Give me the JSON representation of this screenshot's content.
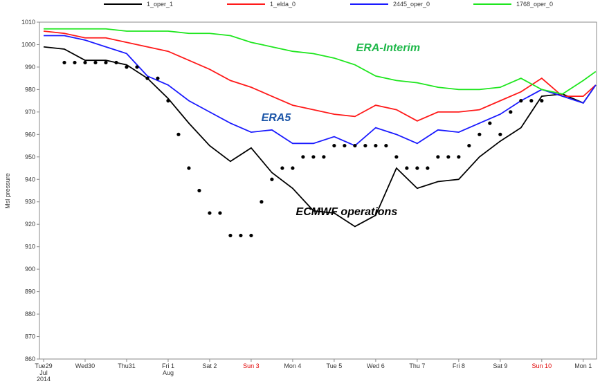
{
  "chart_data": {
    "type": "line",
    "y_label": "Msl pressure",
    "xlim": [
      -0.1,
      13.32
    ],
    "ylim": [
      860,
      1010
    ],
    "yticks": [
      860,
      870,
      880,
      890,
      900,
      910,
      920,
      930,
      940,
      950,
      960,
      970,
      980,
      990,
      1000,
      1010
    ],
    "xticks": [
      {
        "value": 0,
        "label": "Tue29"
      },
      {
        "value": 1,
        "label": "Wed30"
      },
      {
        "value": 2,
        "label": "Thu31"
      },
      {
        "value": 3,
        "label": "Fri 1"
      },
      {
        "value": 4,
        "label": "Sat 2"
      },
      {
        "value": 5,
        "label": "Sun 3",
        "color": "#e00000"
      },
      {
        "value": 6,
        "label": "Mon 4"
      },
      {
        "value": 7,
        "label": "Tue 5"
      },
      {
        "value": 8,
        "label": "Wed 6"
      },
      {
        "value": 9,
        "label": "Thu 7"
      },
      {
        "value": 10,
        "label": "Fri 8"
      },
      {
        "value": 11,
        "label": "Sat 9"
      },
      {
        "value": 12,
        "label": "Sun 10",
        "color": "#e00000"
      },
      {
        "value": 13,
        "label": "Mon 1"
      }
    ],
    "xtick_sublabels": [
      {
        "tick": 0,
        "lines": [
          "Jul",
          "2014"
        ]
      },
      {
        "tick": 3,
        "lines": [
          "Aug"
        ]
      }
    ],
    "x": [
      0,
      0.5,
      1,
      1.5,
      2,
      2.5,
      3,
      3.5,
      4,
      4.5,
      5,
      5.5,
      6,
      6.5,
      7,
      7.5,
      8,
      8.5,
      9,
      9.5,
      10,
      10.5,
      11,
      11.5,
      12,
      12.5,
      13,
      13.3
    ],
    "series": [
      {
        "name": "1_oper_1",
        "color": "#000000",
        "values": [
          999,
          998,
          993,
          993,
          991,
          985,
          976,
          965,
          955,
          948,
          954,
          943,
          936,
          926,
          925,
          919,
          924,
          945,
          936,
          939,
          940,
          950,
          957,
          963,
          977,
          978,
          974,
          982
        ]
      },
      {
        "name": "1_elda_0",
        "color": "#ff1a1a",
        "values": [
          1006,
          1005,
          1003,
          1003,
          1001,
          999,
          997,
          993,
          989,
          984,
          981,
          977,
          973,
          971,
          969,
          968,
          973,
          971,
          966,
          970,
          970,
          971,
          975,
          979,
          985,
          977,
          977,
          982
        ]
      },
      {
        "name": "2445_oper_0",
        "color": "#1a1aff",
        "values": [
          1004,
          1004,
          1002,
          999,
          996,
          986,
          982,
          975,
          970,
          965,
          961,
          962,
          956,
          956,
          959,
          955,
          963,
          960,
          956,
          962,
          961,
          965,
          969,
          975,
          980,
          977,
          974,
          982
        ]
      },
      {
        "name": "1768_oper_0",
        "color": "#1ee61e",
        "values": [
          1007,
          1007,
          1007,
          1007,
          1006,
          1006,
          1006,
          1005,
          1005,
          1004,
          1001,
          999,
          997,
          996,
          994,
          991,
          986,
          984,
          983,
          981,
          980,
          980,
          981,
          985,
          980,
          978,
          984,
          988
        ]
      }
    ],
    "dots": {
      "color": "#000000",
      "x": [
        0.5,
        0.75,
        1,
        1.25,
        1.5,
        1.75,
        2,
        2.25,
        2.5,
        2.75,
        3,
        3.25,
        3.5,
        3.75,
        4,
        4.25,
        4.5,
        4.75,
        5,
        5.25,
        5.5,
        5.75,
        6,
        6.25,
        6.5,
        6.75,
        7,
        7.25,
        7.5,
        7.75,
        8,
        8.25,
        8.5,
        8.75,
        9,
        9.25,
        9.5,
        9.75,
        10,
        10.25,
        10.5,
        10.75,
        11,
        11.25,
        11.5,
        11.75,
        12
      ],
      "values": [
        992,
        992,
        992,
        992,
        992,
        992,
        990,
        990,
        985,
        985,
        975,
        960,
        945,
        935,
        925,
        925,
        915,
        915,
        915,
        930,
        940,
        945,
        945,
        950,
        950,
        950,
        955,
        955,
        955,
        955,
        955,
        955,
        950,
        945,
        945,
        945,
        950,
        950,
        950,
        955,
        960,
        965,
        960,
        970,
        975,
        975,
        975
      ]
    },
    "annotations": [
      {
        "text": "ERA-Interim",
        "color": "#1fb84a",
        "x": 8.3,
        "y": 997
      },
      {
        "text": "ERA5",
        "color": "#1c56a8",
        "x": 5.6,
        "y": 966
      },
      {
        "text": "ECMWF operations",
        "color": "#000000",
        "x": 7.3,
        "y": 924
      }
    ]
  }
}
